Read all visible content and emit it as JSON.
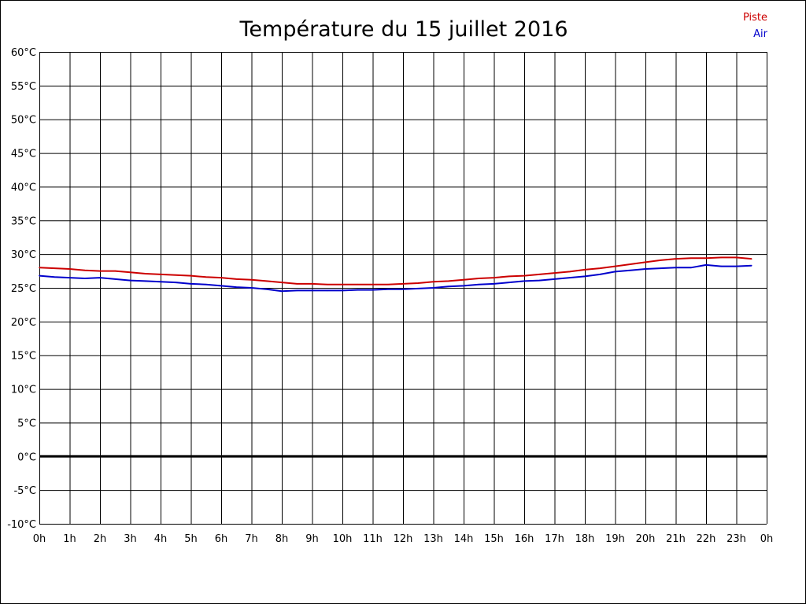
{
  "chart_data": {
    "type": "line",
    "title": "Température du 15 juillet 2016",
    "xlabel": "",
    "ylabel": "",
    "ylim": [
      -10,
      60
    ],
    "xlim": [
      0,
      24
    ],
    "grid": true,
    "legend_position": "top-right",
    "y_ticks": [
      "-10°C",
      "-5°C",
      "0°C",
      "5°C",
      "10°C",
      "15°C",
      "20°C",
      "25°C",
      "30°C",
      "35°C",
      "40°C",
      "45°C",
      "50°C",
      "55°C",
      "60°C"
    ],
    "y_tick_values": [
      -10,
      -5,
      0,
      5,
      10,
      15,
      20,
      25,
      30,
      35,
      40,
      45,
      50,
      55,
      60
    ],
    "x_ticks": [
      "0h",
      "1h",
      "2h",
      "3h",
      "4h",
      "5h",
      "6h",
      "7h",
      "8h",
      "9h",
      "10h",
      "11h",
      "12h",
      "13h",
      "14h",
      "15h",
      "16h",
      "17h",
      "18h",
      "19h",
      "20h",
      "21h",
      "22h",
      "23h",
      "0h"
    ],
    "x_tick_values": [
      0,
      1,
      2,
      3,
      4,
      5,
      6,
      7,
      8,
      9,
      10,
      11,
      12,
      13,
      14,
      15,
      16,
      17,
      18,
      19,
      20,
      21,
      22,
      23,
      24
    ],
    "series": [
      {
        "name": "Piste",
        "color": "#cc0000",
        "x": [
          0,
          0.5,
          1,
          1.5,
          2,
          2.5,
          3,
          3.5,
          4,
          4.5,
          5,
          5.5,
          6,
          6.5,
          7,
          7.5,
          8,
          8.5,
          9,
          9.5,
          10,
          10.5,
          11,
          11.5,
          12,
          12.5,
          13,
          13.5,
          14,
          14.5,
          15,
          15.5,
          16,
          16.5,
          17,
          17.5,
          18,
          18.5,
          19,
          19.5,
          20,
          20.5,
          21,
          21.5,
          22,
          22.5,
          23,
          23.5
        ],
        "y": [
          28,
          27.9,
          27.8,
          27.6,
          27.5,
          27.5,
          27.3,
          27.1,
          27,
          26.9,
          26.8,
          26.6,
          26.5,
          26.3,
          26.2,
          26,
          25.8,
          25.6,
          25.6,
          25.5,
          25.5,
          25.5,
          25.5,
          25.5,
          25.6,
          25.7,
          25.9,
          26,
          26.2,
          26.4,
          26.5,
          26.7,
          26.8,
          27,
          27.2,
          27.4,
          27.7,
          27.9,
          28.2,
          28.5,
          28.8,
          29.1,
          29.3,
          29.4,
          29.4,
          29.5,
          29.5,
          29.3
        ]
      },
      {
        "name": "Air",
        "color": "#0000cc",
        "x": [
          0,
          0.5,
          1,
          1.5,
          2,
          2.5,
          3,
          3.5,
          4,
          4.5,
          5,
          5.5,
          6,
          6.5,
          7,
          7.5,
          8,
          8.5,
          9,
          9.5,
          10,
          10.5,
          11,
          11.5,
          12,
          12.5,
          13,
          13.5,
          14,
          14.5,
          15,
          15.5,
          16,
          16.5,
          17,
          17.5,
          18,
          18.5,
          19,
          19.5,
          20,
          20.5,
          21,
          21.5,
          22,
          22.5,
          23,
          23.5
        ],
        "y": [
          26.8,
          26.6,
          26.5,
          26.4,
          26.5,
          26.3,
          26.1,
          26,
          25.9,
          25.8,
          25.6,
          25.5,
          25.3,
          25.1,
          25,
          24.8,
          24.5,
          24.6,
          24.6,
          24.6,
          24.6,
          24.7,
          24.7,
          24.8,
          24.8,
          24.9,
          25,
          25.2,
          25.3,
          25.5,
          25.6,
          25.8,
          26,
          26.1,
          26.3,
          26.5,
          26.7,
          27,
          27.4,
          27.6,
          27.8,
          27.9,
          28,
          28,
          28.4,
          28.2,
          28.2,
          28.3
        ]
      }
    ]
  }
}
